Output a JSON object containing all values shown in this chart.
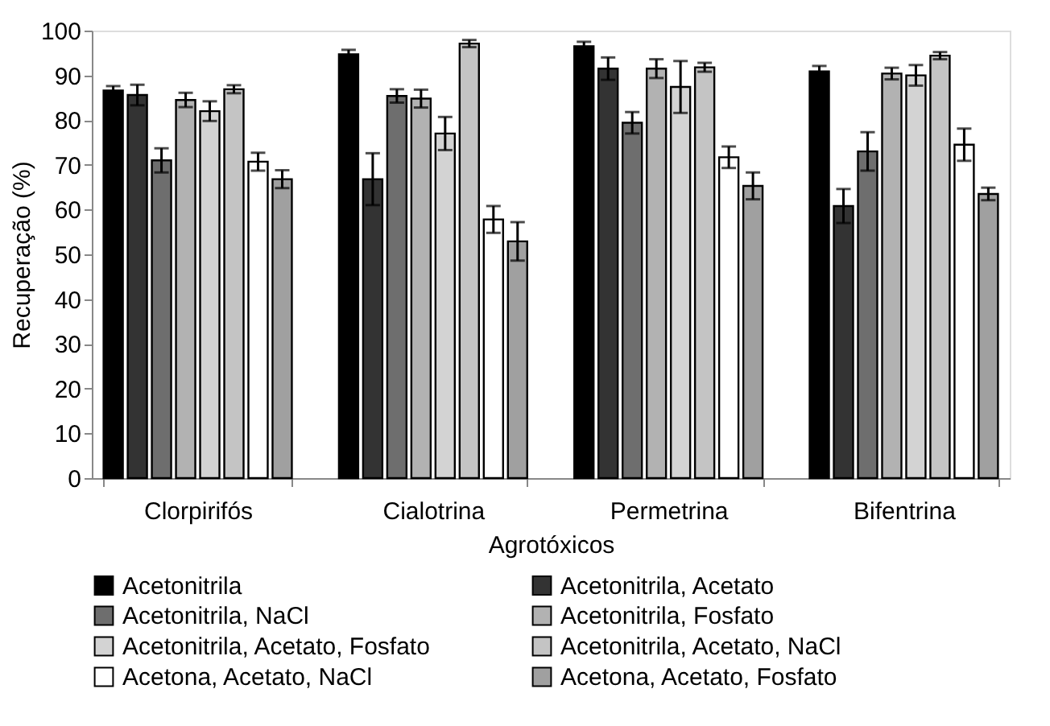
{
  "chart_data": {
    "type": "bar",
    "xlabel": "Agrotóxicos",
    "ylabel": "Recuperação (%)",
    "categories": [
      "Clorpirifós",
      "Cialotrina",
      "Permetrina",
      "Bifentrina"
    ],
    "series": [
      {
        "name": "Acetonitrila",
        "color": "#000000",
        "values": [
          86.6,
          94.7,
          96.5,
          90.9
        ],
        "errors": [
          1.0,
          1.0,
          1.0,
          1.2
        ]
      },
      {
        "name": "Acetonitrila, Acetato",
        "color": "#333333",
        "values": [
          85.6,
          66.8,
          91.5,
          60.8
        ],
        "errors": [
          2.3,
          5.8,
          2.5,
          3.8
        ]
      },
      {
        "name": "Acetonitrila, NaCl",
        "color": "#6e6e6e",
        "values": [
          71.0,
          85.4,
          79.4,
          73.0
        ],
        "errors": [
          2.7,
          1.5,
          2.4,
          4.3
        ]
      },
      {
        "name": "Acetonitrila, Fosfato",
        "color": "#b2b2b2",
        "values": [
          84.5,
          84.8,
          91.5,
          90.4
        ],
        "errors": [
          1.6,
          2.0,
          2.1,
          1.3
        ]
      },
      {
        "name": "Acetonitrila, Acetato, Fosfato",
        "color": "#d3d3d3",
        "values": [
          82.0,
          77.0,
          87.4,
          90.0
        ],
        "errors": [
          2.2,
          3.7,
          5.8,
          2.3
        ]
      },
      {
        "name": "Acetonitrila, Acetato, NaCl",
        "color": "#c4c4c4",
        "values": [
          86.9,
          97.1,
          91.8,
          94.4
        ],
        "errors": [
          0.9,
          0.8,
          1.0,
          0.8
        ]
      },
      {
        "name": "Acetona, Acetato, NaCl",
        "color": "#ffffff",
        "values": [
          70.7,
          57.8,
          71.7,
          74.5
        ],
        "errors": [
          2.0,
          3.0,
          2.4,
          3.6
        ]
      },
      {
        "name": "Acetona, Acetato, Fosfato",
        "color": "#a0a0a0",
        "values": [
          66.8,
          52.9,
          65.3,
          63.5
        ],
        "errors": [
          2.0,
          4.3,
          3.0,
          1.4
        ]
      }
    ],
    "ylim": [
      0,
      100
    ],
    "yticks": [
      0,
      10,
      20,
      30,
      40,
      50,
      60,
      70,
      80,
      90,
      100
    ],
    "grid": false,
    "legend": "bottom"
  }
}
